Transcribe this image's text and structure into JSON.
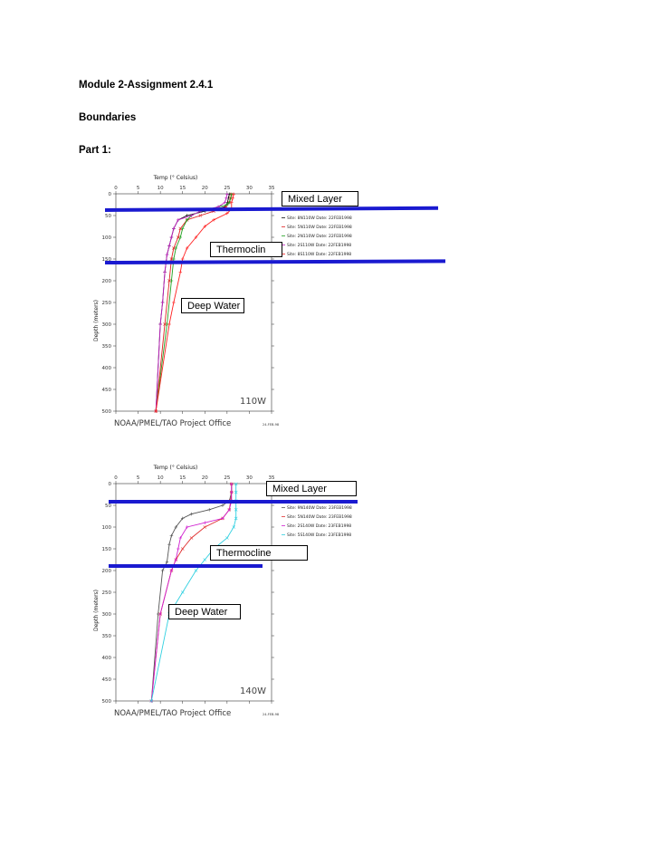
{
  "doc": {
    "title": "Module 2-Assignment 2.4.1",
    "section": "Boundaries",
    "part": "Part 1:"
  },
  "charts": [
    {
      "annotations": {
        "mixed": "Mixed Layer",
        "thermo": "Thermoclin",
        "deep": "Deep Water"
      },
      "longitude_label": "110W",
      "footer": "NOAA/PMEL/TAO Project Office",
      "date_stamp": "24-FEB-98",
      "xlabel": "Temp (° Celsius)",
      "ylabel": "Depth (meters)",
      "chart_data": {
        "type": "line",
        "title": "",
        "xlabel": "Temp (° Celsius)",
        "ylabel": "Depth (meters)",
        "xlim": [
          0,
          35
        ],
        "ylim": [
          0,
          500
        ],
        "y_inverted": true,
        "xticks": [
          0,
          5,
          10,
          15,
          20,
          25,
          30,
          35
        ],
        "yticks": [
          0,
          50,
          100,
          150,
          200,
          250,
          300,
          350,
          400,
          450,
          500
        ],
        "legend": "right",
        "series": [
          {
            "name": "Site: 8N110W  Date: 22FEB1998",
            "color": "#111111",
            "marker": "+",
            "points": [
              [
                25.5,
                1
              ],
              [
                25.3,
                10
              ],
              [
                25.1,
                20
              ],
              [
                24.5,
                30
              ],
              [
                20,
                40
              ],
              [
                16,
                50
              ],
              [
                14,
                60
              ],
              [
                13,
                80
              ],
              [
                12.5,
                100
              ],
              [
                12,
                120
              ],
              [
                11.5,
                140
              ],
              [
                11,
                180
              ],
              [
                10.5,
                250
              ],
              [
                10,
                300
              ],
              [
                9,
                500
              ]
            ]
          },
          {
            "name": "Site: 5N110W  Date: 22FEB1998",
            "color": "#e02020",
            "marker": "x",
            "points": [
              [
                26,
                1
              ],
              [
                25.8,
                10
              ],
              [
                25.5,
                20
              ],
              [
                24.8,
                30
              ],
              [
                22,
                40
              ],
              [
                19,
                50
              ],
              [
                16,
                60
              ],
              [
                14.5,
                80
              ],
              [
                14,
                100
              ],
              [
                13,
                125
              ],
              [
                12.5,
                150
              ],
              [
                12,
                200
              ],
              [
                11,
                300
              ],
              [
                9,
                500
              ]
            ]
          },
          {
            "name": "Site: 2N110W  Date: 22FEB1998",
            "color": "#20a020",
            "marker": "*",
            "points": [
              [
                26,
                1
              ],
              [
                25.8,
                10
              ],
              [
                25.5,
                20
              ],
              [
                25,
                25
              ],
              [
                23,
                30
              ],
              [
                19,
                40
              ],
              [
                17,
                50
              ],
              [
                16,
                60
              ],
              [
                15,
                80
              ],
              [
                14.5,
                100
              ],
              [
                13.5,
                125
              ],
              [
                13,
                150
              ],
              [
                12.5,
                200
              ],
              [
                11.5,
                300
              ],
              [
                9,
                500
              ]
            ]
          },
          {
            "name": "Site: 2S110W  Date: 22FEB1998",
            "color": "#c020c0",
            "marker": "+",
            "points": [
              [
                25,
                1
              ],
              [
                24.8,
                10
              ],
              [
                24.5,
                20
              ],
              [
                23,
                30
              ],
              [
                19,
                40
              ],
              [
                17,
                50
              ],
              [
                14,
                60
              ],
              [
                13,
                80
              ],
              [
                12.5,
                100
              ],
              [
                12,
                120
              ],
              [
                11.5,
                140
              ],
              [
                11,
                180
              ],
              [
                10.5,
                250
              ],
              [
                10,
                300
              ],
              [
                9,
                500
              ]
            ]
          },
          {
            "name": "Site: 8S110W  Date: 22FEB1998",
            "color": "#ff2020",
            "marker": "+",
            "points": [
              [
                26.5,
                1
              ],
              [
                26.3,
                10
              ],
              [
                26,
                20
              ],
              [
                26,
                35
              ],
              [
                25,
                45
              ],
              [
                22,
                60
              ],
              [
                20,
                75
              ],
              [
                18,
                100
              ],
              [
                16,
                125
              ],
              [
                15,
                150
              ],
              [
                14.5,
                180
              ],
              [
                13,
                250
              ],
              [
                12,
                300
              ],
              [
                9,
                500
              ]
            ]
          }
        ]
      }
    },
    {
      "annotations": {
        "mixed": "Mixed Layer",
        "thermo": "Thermocline",
        "deep": "Deep Water"
      },
      "longitude_label": "140W",
      "footer": "NOAA/PMEL/TAO Project Office",
      "date_stamp": "24-FEB-98",
      "xlabel": "Temp (° Celsius)",
      "ylabel": "Depth (meters)",
      "chart_data": {
        "type": "line",
        "title": "",
        "xlabel": "Temp (° Celsius)",
        "ylabel": "Depth (meters)",
        "xlim": [
          0,
          35
        ],
        "ylim": [
          0,
          500
        ],
        "y_inverted": true,
        "xticks": [
          0,
          5,
          10,
          15,
          20,
          25,
          30,
          35
        ],
        "yticks": [
          0,
          50,
          100,
          150,
          200,
          250,
          300,
          350,
          400,
          450,
          500
        ],
        "legend": "right",
        "series": [
          {
            "name": "Site: 9N140W  Date: 23FEB1998",
            "color": "#555555",
            "marker": "+",
            "points": [
              [
                26,
                1
              ],
              [
                26,
                20
              ],
              [
                25.5,
                40
              ],
              [
                24,
                50
              ],
              [
                21,
                60
              ],
              [
                17,
                70
              ],
              [
                15,
                80
              ],
              [
                13.5,
                100
              ],
              [
                12.5,
                120
              ],
              [
                12,
                140
              ],
              [
                11.5,
                180
              ],
              [
                10.5,
                200
              ],
              [
                9.5,
                300
              ],
              [
                8,
                500
              ]
            ]
          },
          {
            "name": "Site: 5N140W  Date: 23FEB1998",
            "color": "#e03030",
            "marker": "x",
            "points": [
              [
                26,
                1
              ],
              [
                26,
                20
              ],
              [
                25.8,
                40
              ],
              [
                25.5,
                60
              ],
              [
                24,
                80
              ],
              [
                20,
                100
              ],
              [
                17,
                125
              ],
              [
                15,
                150
              ],
              [
                13.5,
                175
              ],
              [
                12.5,
                200
              ],
              [
                10,
                300
              ],
              [
                8,
                500
              ]
            ]
          },
          {
            "name": "Site: 2S140W  Date: 23FEB1998",
            "color": "#d020d0",
            "marker": "+",
            "points": [
              [
                26,
                1
              ],
              [
                26,
                20
              ],
              [
                26,
                40
              ],
              [
                25.5,
                60
              ],
              [
                24,
                80
              ],
              [
                20,
                90
              ],
              [
                16,
                100
              ],
              [
                14.5,
                125
              ],
              [
                14,
                150
              ],
              [
                13.5,
                175
              ],
              [
                12.5,
                200
              ],
              [
                10,
                300
              ],
              [
                8,
                500
              ]
            ]
          },
          {
            "name": "Site: 5S140W  Date: 23FEB1998",
            "color": "#30d0e0",
            "marker": "x",
            "points": [
              [
                27,
                1
              ],
              [
                27,
                20
              ],
              [
                27,
                40
              ],
              [
                27,
                60
              ],
              [
                27,
                80
              ],
              [
                26.5,
                100
              ],
              [
                25,
                125
              ],
              [
                22,
                150
              ],
              [
                20,
                175
              ],
              [
                18,
                200
              ],
              [
                15,
                250
              ],
              [
                12,
                300
              ],
              [
                8,
                500
              ]
            ]
          }
        ]
      }
    }
  ]
}
